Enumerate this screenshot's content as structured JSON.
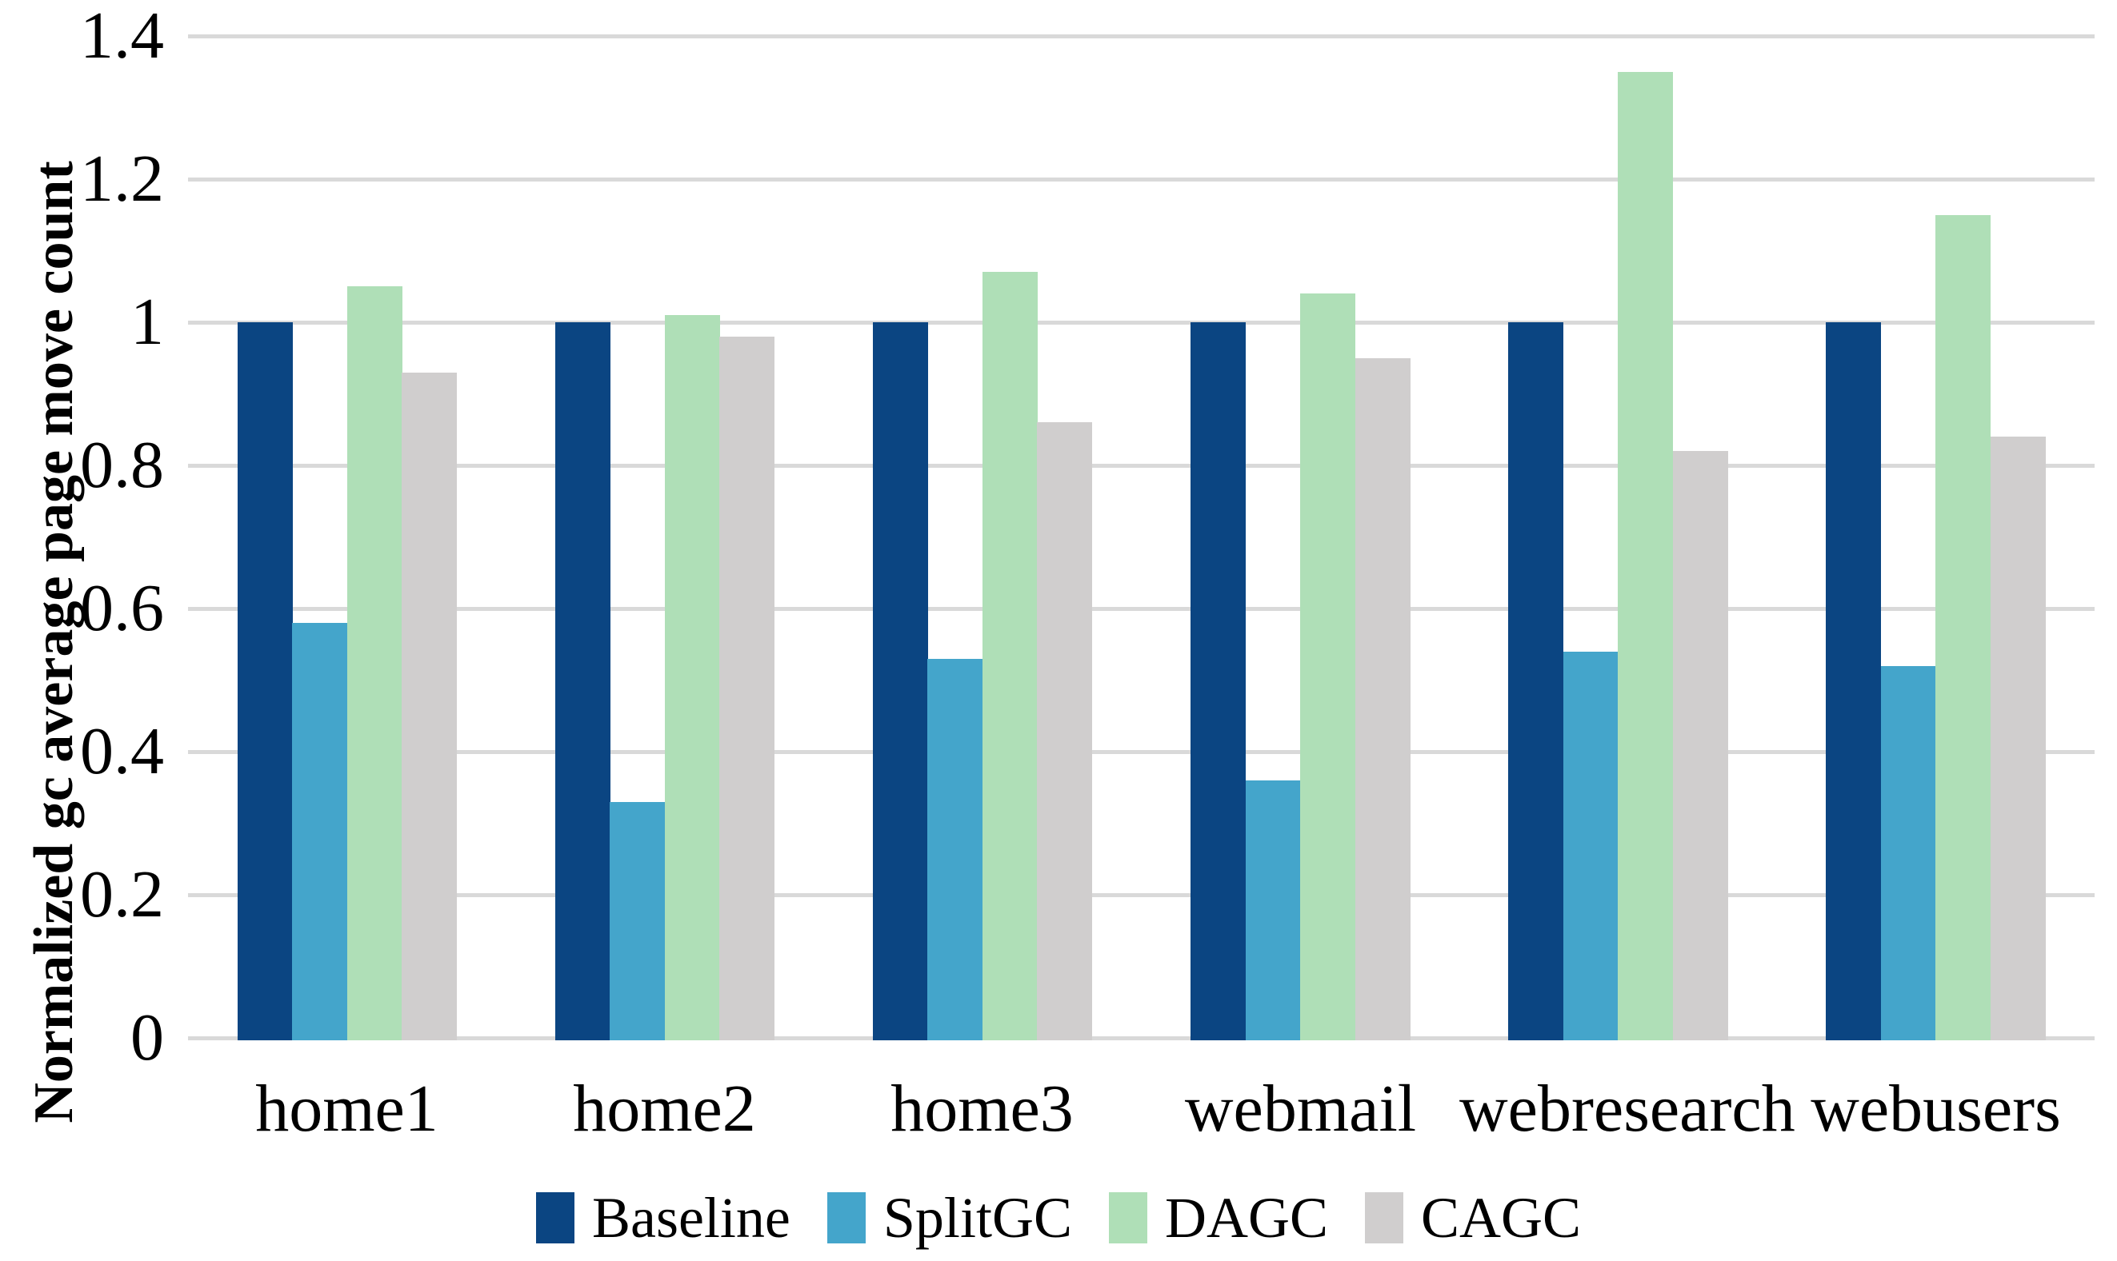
{
  "chart_data": {
    "type": "bar",
    "title": "",
    "ylabel": "Normalized gc average page move count",
    "xlabel": "",
    "categories": [
      "home1",
      "home2",
      "home3",
      "webmail",
      "webresearch",
      "webusers"
    ],
    "series": [
      {
        "name": "Baseline",
        "color": "#0B4582",
        "values": [
          1.0,
          1.0,
          1.0,
          1.0,
          1.0,
          1.0
        ]
      },
      {
        "name": "SplitGC",
        "color": "#44A5CB",
        "values": [
          0.58,
          0.33,
          0.53,
          0.36,
          0.54,
          0.52
        ]
      },
      {
        "name": "DAGC",
        "color": "#AFDFB7",
        "values": [
          1.05,
          1.01,
          1.07,
          1.04,
          1.35,
          1.15
        ]
      },
      {
        "name": "CAGC",
        "color": "#D0CECE",
        "values": [
          0.93,
          0.98,
          0.86,
          0.95,
          0.82,
          0.84
        ]
      }
    ],
    "ylim": [
      0,
      1.4
    ],
    "yticks": [
      0,
      0.2,
      0.4,
      0.6,
      0.8,
      1,
      1.2,
      1.4
    ],
    "grid": true,
    "gridline_color": "#D9D9D9",
    "legend_position": "bottom",
    "bars_gap_within_group": 0
  }
}
